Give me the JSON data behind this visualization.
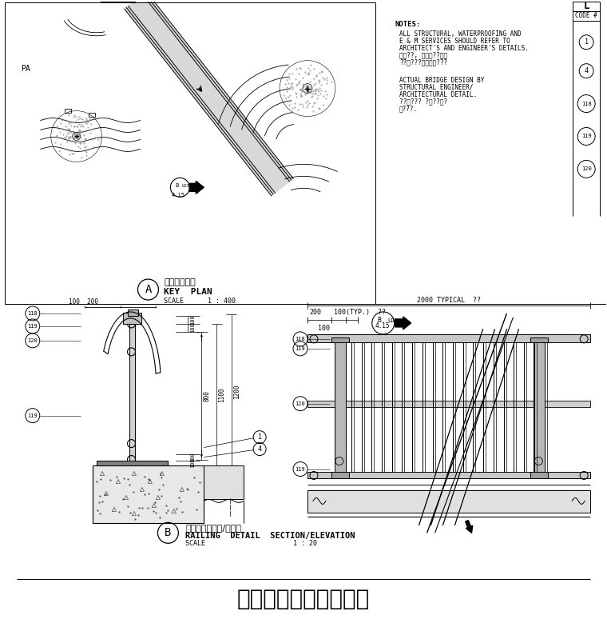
{
  "bg_color": "#ffffff",
  "line_color": "#000000",
  "gray_light": "#e0e0e0",
  "gray_med": "#b0b0b0",
  "gray_dark": "#808080",
  "title": "主要入口車道架橋詳圖",
  "title_fontsize": 20,
  "notes_title": "NOTES:",
  "notes_line1": "ALL STRUCTURAL, WATERPROOFING AND",
  "notes_line2": "E & M SERVICES SHOULD REFER TO",
  "notes_line3": "ARCHITECT'S AND ENGINEER'S DETAILS.",
  "notes_chinese1": "所有??, 防水及??服務",
  "notes_chinese2": "??請???及工程師???",
  "notes_line4": "ACTUAL BRIDGE DESIGN BY",
  "notes_line5": "STRUCTURAL ENGINEER/",
  "notes_line6": "ARCHITECTURAL DETAIL.",
  "notes_chinese3": "??橋??? ?橋??橋?",
  "notes_chinese4": "橋???.",
  "label_L": "L",
  "label_CODE": "CODE #",
  "section_A_chinese": "平面布置總圖",
  "section_A_sub": "KEY  PLAN",
  "section_A_scale": "SCALE      1 : 400",
  "section_B_chinese": "欄杆細部截面圖/立面圖",
  "section_B_sub": "RAILING  DETAIL  SECTION/ELEVATION",
  "section_B_scale": "SCALE                      1 : 20",
  "dim_2000": "2000 TYPICAL  ??",
  "dim_200_label": "200",
  "dim_100typ_label": "100(TYP.)  ??",
  "dim_100_label": "100",
  "dim_100_200_label": "100  200",
  "dim_800_label": "800",
  "dim_1100_label": "1100",
  "dim_1200_label": "1200"
}
